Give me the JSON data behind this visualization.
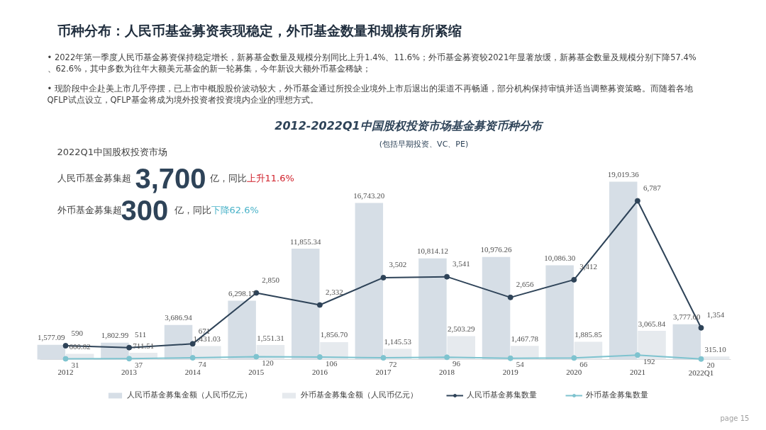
{
  "chart_data": {
    "type": "bar",
    "title": "2012-2022Q1中国股权投资市场基金募资币种分布",
    "subtitle": "(包括早期投资、VC、PE)",
    "categories": [
      "2012",
      "2013",
      "2014",
      "2015",
      "2016",
      "2017",
      "2018",
      "2019",
      "2020",
      "2021",
      "2022Q1"
    ],
    "series": [
      {
        "name": "人民币基金募集金额（人民币亿元）",
        "color": "#d6dee6",
        "values": [
          1577.09,
          1802.99,
          3686.94,
          6298.17,
          11855.34,
          16743.2,
          10814.12,
          10976.26,
          10086.3,
          19019.36,
          3777.6
        ],
        "value_labels": [
          "1,577.09",
          "1,802.99",
          "3,686.94",
          "6,298.17",
          "11,855.34",
          "16,743.20",
          "10,814.12",
          "10,976.26",
          "10,086.30",
          "19,019.36",
          "3,777.60"
        ]
      },
      {
        "name": "外币基金募集金额（人民币亿元）",
        "color": "#e6eaee",
        "values": [
          600.82,
          711.51,
          1431.03,
          1551.31,
          1856.7,
          1145.53,
          2503.29,
          1467.78,
          1885.85,
          3065.84,
          315.1
        ],
        "value_labels": [
          "600.82",
          "711.51",
          "1,431.03",
          "1,551.31",
          "1,856.70",
          "1,145.53",
          "2,503.29",
          "1,467.78",
          "1,885.85",
          "3,065.84",
          "315.10"
        ]
      },
      {
        "name": "人民币基金募集数量",
        "type": "line",
        "axis": "y2",
        "color": "#2e4358",
        "values": [
          590,
          511,
          671,
          2850,
          2332,
          3502,
          3541,
          2656,
          3412,
          6787,
          1354
        ],
        "value_labels": [
          "590",
          "511",
          "671",
          "2,850",
          "2,332",
          "3,502",
          "3,541",
          "2,656",
          "3,412",
          "6,787",
          "1,354"
        ]
      },
      {
        "name": "外币基金募集数量",
        "type": "line",
        "axis": "y2",
        "color": "#7ec3cf",
        "values": [
          31,
          37,
          74,
          120,
          106,
          72,
          96,
          54,
          66,
          192,
          20
        ],
        "value_labels": [
          "31",
          "37",
          "74",
          "120",
          "106",
          "72",
          "96",
          "54",
          "66",
          "192",
          "20"
        ]
      }
    ],
    "tick_labels": "x",
    "legend": "bottom",
    "marker": "circle",
    "annotations": [
      "2022Q1中国股权投资市场",
      "人民币基金募集超",
      "3,700",
      "亿，同比",
      "上升11.6%",
      "外币基金募集超",
      "300",
      "亿，同比",
      "下降62.6%",
      "币种分布：人民币基金募资表现稳定，外币基金数量和规模有所紧缩",
      "• 2022年第一季度人民币基金募资保持稳定增长，新募基金数量及规模分别同比上升1.4%、11.6%；外币基金募资较2021年显著放缓，新募基金数量及规模分别下降57.4%、62.6%，其中多数为往年大额美元基金的新一轮募集，今年新设大额外币基金稀缺；",
      "• 现阶段中企赴美上市几乎停摆，已上市中概股股价波动较大，外币基金通过所投企业境外上市后退出的渠道不再畅通，部分机构保持审慎并适当调整募资策略。而随着各地QFLP试点设立，QFLP基金将成为境外投资者投资境内企业的理想方式。",
      "page 15"
    ]
  }
}
